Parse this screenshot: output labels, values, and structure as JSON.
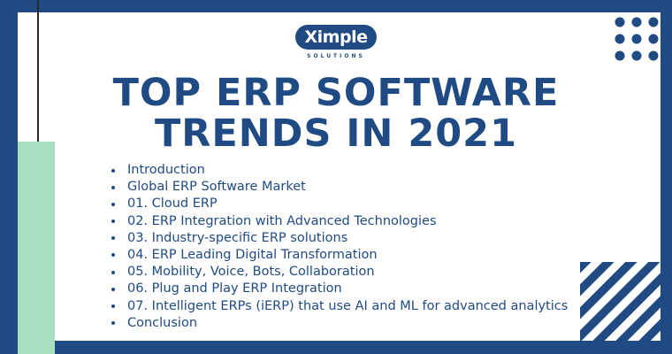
{
  "logo": {
    "name": "Ximple",
    "tagline": "SOLUTIONS"
  },
  "title": {
    "line1": "TOP ERP SOFTWARE",
    "line2": "TRENDS IN 2021"
  },
  "toc": {
    "items": [
      "Introduction",
      "Global ERP Software Market",
      "01. Cloud ERP",
      "02. ERP Integration with Advanced Technologies",
      "03. Industry-specific ERP solutions",
      "04. ERP Leading Digital Transformation",
      "05. Mobility, Voice, Bots, Collaboration",
      "06. Plug and Play ERP Integration",
      "07. Intelligent ERPs (iERP) that use AI and ML for advanced analytics",
      "Conclusion"
    ]
  },
  "colors": {
    "brand_navy": "#1f4a84",
    "mint_accent": "#a8dfc1",
    "card_background": "#ffffff"
  },
  "decorations": {
    "dot_grid_icon": "dot-grid-icon",
    "diagonal_stripes_icon": "diagonal-stripes-icon"
  }
}
